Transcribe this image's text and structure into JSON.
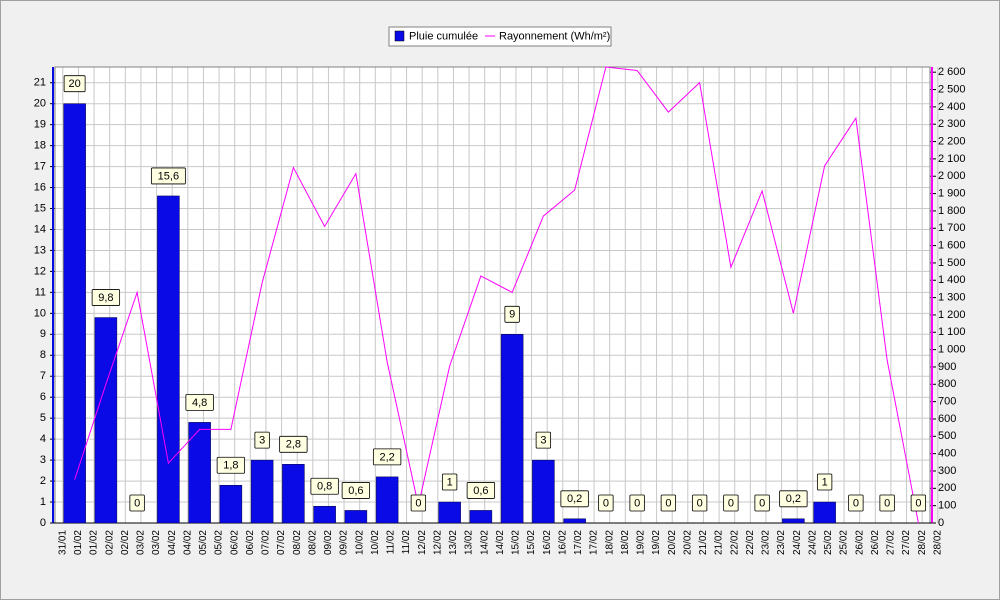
{
  "chart_data": {
    "type": "bar_line",
    "x_labels": [
      "31/01",
      "01/02",
      "01/02",
      "02/02",
      "02/02",
      "03/02",
      "03/02",
      "04/02",
      "04/02",
      "05/02",
      "05/02",
      "06/02",
      "06/02",
      "07/02",
      "07/02",
      "08/02",
      "08/02",
      "09/02",
      "09/02",
      "10/02",
      "10/02",
      "11/02",
      "11/02",
      "12/02",
      "12/02",
      "13/02",
      "13/02",
      "14/02",
      "14/02",
      "15/02",
      "15/02",
      "16/02",
      "16/02",
      "17/02",
      "17/02",
      "18/02",
      "18/02",
      "19/02",
      "19/02",
      "20/02",
      "20/02",
      "21/02",
      "21/02",
      "22/02",
      "22/02",
      "23/02",
      "23/02",
      "24/02",
      "24/02",
      "25/02",
      "25/02",
      "26/02",
      "26/02",
      "27/02",
      "27/02",
      "28/02",
      "28/02"
    ],
    "series": [
      {
        "name": "Pluie cumulée",
        "color": "#0a0ae6",
        "kind": "bar",
        "values": [
          20,
          9.8,
          0,
          15.6,
          4.8,
          1.8,
          3,
          2.8,
          0.8,
          0.6,
          2.2,
          0,
          1,
          0.6,
          9,
          3,
          0.2,
          0,
          0,
          0,
          0,
          0,
          0,
          0.2,
          1,
          0,
          0,
          0
        ],
        "value_labels": [
          "20",
          "9,8",
          "0",
          "15,6",
          "4,8",
          "1,8",
          "3",
          "2,8",
          "0,8",
          "0,6",
          "2,2",
          "0",
          "1",
          "0,6",
          "9",
          "3",
          "0,2",
          "0",
          "0",
          "0",
          "0",
          "0",
          "0",
          "0,2",
          "1",
          "0",
          "0",
          "0"
        ]
      },
      {
        "name": "Rayonnement (Wh/m²)",
        "color": "#ff00ff",
        "kind": "line",
        "axis": "y2",
        "values": [
          250,
          800,
          1330,
          345,
          540,
          540,
          1385,
          2050,
          1710,
          2015,
          930,
          100,
          905,
          1425,
          1330,
          1770,
          1920,
          2630,
          2610,
          2370,
          2540,
          1475,
          1915,
          1210,
          2060,
          2335,
          940,
          0
        ]
      }
    ],
    "ylim": [
      0,
      21.75
    ],
    "yticks": [
      0,
      1,
      2,
      3,
      4,
      5,
      6,
      7,
      8,
      9,
      10,
      11,
      12,
      13,
      14,
      15,
      16,
      17,
      18,
      19,
      20,
      21
    ],
    "y2lim": [
      0,
      2630
    ],
    "y2ticks": [
      0,
      100,
      200,
      300,
      400,
      500,
      600,
      700,
      800,
      900,
      {
        "value": 1000,
        "label": "1 000"
      },
      {
        "value": 1100,
        "label": "1 100"
      },
      {
        "value": 1200,
        "label": "1 200"
      },
      {
        "value": 1300,
        "label": "1 300"
      },
      {
        "value": 1400,
        "label": "1 400"
      },
      {
        "value": 1500,
        "label": "1 500"
      },
      {
        "value": 1600,
        "label": "1 600"
      },
      {
        "value": 1700,
        "label": "1 700"
      },
      {
        "value": 1800,
        "label": "1 800"
      },
      {
        "value": 1900,
        "label": "1 900"
      },
      {
        "value": 2000,
        "label": "2 000"
      },
      {
        "value": 2100,
        "label": "2 100"
      },
      {
        "value": 2200,
        "label": "2 200"
      },
      {
        "value": 2300,
        "label": "2 300"
      },
      {
        "value": 2400,
        "label": "2 400"
      },
      {
        "value": 2500,
        "label": "2 500"
      },
      {
        "value": 2600,
        "label": "2 600"
      }
    ],
    "grid": true,
    "legend": "top"
  }
}
